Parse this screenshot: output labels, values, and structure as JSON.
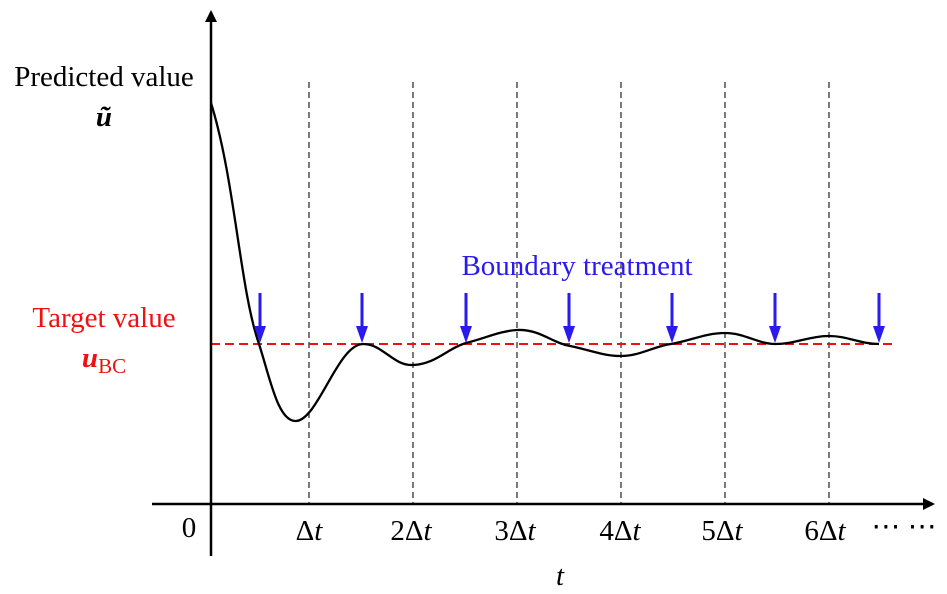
{
  "y_axis": {
    "title": "Predicted value",
    "symbol": "ũ"
  },
  "target": {
    "title": "Target value",
    "symbol": "u",
    "subscript": "BC",
    "color": "#ee1111"
  },
  "boundary_label": {
    "text": "Boundary treatment",
    "color": "#2a1aee"
  },
  "x_axis": {
    "title": "t",
    "origin_label": "0",
    "ticks": [
      {
        "coef": "",
        "delta": "Δ",
        "var": "t"
      },
      {
        "coef": "2",
        "delta": "Δ",
        "var": "t"
      },
      {
        "coef": "3",
        "delta": "Δ",
        "var": "t"
      },
      {
        "coef": "4",
        "delta": "Δ",
        "var": "t"
      },
      {
        "coef": "5",
        "delta": "Δ",
        "var": "t"
      },
      {
        "coef": "6",
        "delta": "Δ",
        "var": "t"
      }
    ],
    "ellipsis": "⋯ ⋯"
  },
  "boundary_arrow_count": 7,
  "colors": {
    "axis": "#000000",
    "curve": "#000000",
    "gridline": "#333333",
    "arrow": "#2a1aee",
    "target_line": "#ee1111"
  }
}
